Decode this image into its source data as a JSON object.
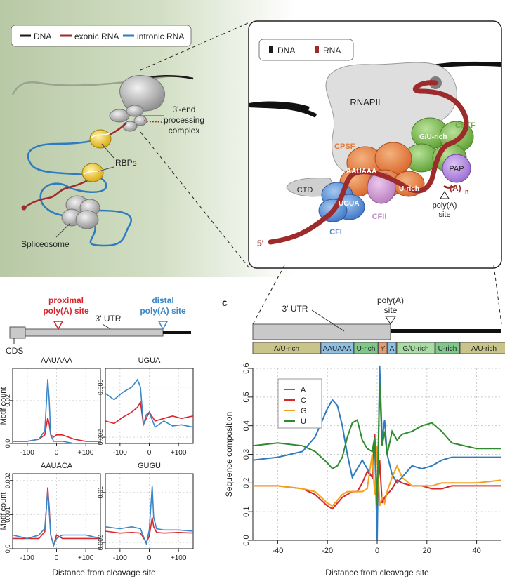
{
  "colors": {
    "dna": "#1a1a1a",
    "exonic": "#9e2b2b",
    "intronic": "#2f7bbf",
    "proximal": "#d8262c",
    "distal": "#3a86c8",
    "cpsf": "#e07a3a",
    "cstf": "#6aab3c",
    "cfi": "#4c86d0",
    "cfii": "#c28ac6",
    "pap": "#a678d6",
    "rnapii": "#d9d9d9"
  },
  "panelA": {
    "legend": {
      "dna": "DNA",
      "exonic": "exonic RNA",
      "intronic": "intronic RNA"
    },
    "labels": {
      "complex1": "3'-end",
      "complex2": "processing",
      "complex3": "complex",
      "rbps": "RBPs",
      "spliceosome": "Spliceosome"
    }
  },
  "panelB": {
    "legend": {
      "dna": "DNA",
      "rna": "RNA"
    },
    "labels": {
      "rnapii": "RNAPII",
      "cpsf": "CPSF",
      "cstf": "CSTF",
      "gu_rich": "G/U-rich",
      "pap": "PAP",
      "aauaaa": "AAUAAA",
      "u_rich": "U-rich",
      "ctd": "CTD",
      "ugua": "UGUA",
      "cfii": "CFII",
      "cfi": "CFI",
      "polya_tail": "(A)",
      "polya_n": "n",
      "polya_site1": "poly(A)",
      "polya_site2": "site",
      "five_prime": "5'"
    }
  },
  "panelC": {
    "letter": "c",
    "utr": "3' UTR",
    "polya1": "poly(A)",
    "polya2": "site",
    "motifs": [
      "A/U-rich",
      "AAUAAA",
      "U-rich",
      "Y",
      "A",
      "G/U-rich",
      "U-rich",
      "A/U-rich"
    ],
    "motif_colors": [
      "#c9c48a",
      "#8fbfe0",
      "#7fc88a",
      "#e89a6a",
      "#8fbfe0",
      "#a9dca3",
      "#7fc88a",
      "#c9c48a"
    ],
    "ylabel": "Sequence composition",
    "xlabel": "Distance from cleavage site",
    "legend": [
      "A",
      "C",
      "G",
      "U"
    ]
  },
  "panelD": {
    "proximal1": "proximal",
    "proximal2": "poly(A) site",
    "distal1": "distal",
    "distal2": "poly(A) site",
    "utr": "3' UTR",
    "cds": "CDS",
    "ylabel": "Motif count",
    "xlabel": "Distance from cleavage site",
    "titles": [
      "AAUAAA",
      "UGUA",
      "AAUACA",
      "GUGU"
    ]
  },
  "chart_data": [
    {
      "type": "line",
      "title": "",
      "xlabel": "Distance from cleavage site",
      "ylabel": "Sequence composition",
      "xlim": [
        -50,
        50
      ],
      "ylim": [
        0,
        0.6
      ],
      "xticks": [
        -40,
        -20,
        0,
        20,
        40
      ],
      "yticks": [
        0.0,
        0.1,
        0.2,
        0.3,
        0.4,
        0.5,
        0.6
      ],
      "grid": true,
      "legend": "top-left",
      "series": [
        {
          "name": "A",
          "color": "#2f7bbf",
          "x": [
            -50,
            -40,
            -30,
            -25,
            -20,
            -18,
            -16,
            -14,
            -12,
            -10,
            -8,
            -6,
            -4,
            -2,
            -1,
            0,
            1,
            2,
            3,
            4,
            6,
            8,
            10,
            14,
            18,
            22,
            26,
            30,
            40,
            50
          ],
          "y": [
            0.28,
            0.29,
            0.31,
            0.36,
            0.46,
            0.49,
            0.47,
            0.4,
            0.3,
            0.22,
            0.25,
            0.28,
            0.25,
            0.22,
            0.35,
            0.0,
            0.61,
            0.35,
            0.42,
            0.3,
            0.23,
            0.2,
            0.22,
            0.26,
            0.25,
            0.26,
            0.28,
            0.29,
            0.29,
            0.29
          ]
        },
        {
          "name": "C",
          "color": "#d8262c",
          "x": [
            -50,
            -40,
            -30,
            -25,
            -20,
            -18,
            -16,
            -14,
            -12,
            -10,
            -8,
            -6,
            -4,
            -2,
            -1,
            0,
            1,
            2,
            3,
            4,
            6,
            8,
            10,
            14,
            18,
            22,
            26,
            30,
            40,
            50
          ],
          "y": [
            0.19,
            0.19,
            0.18,
            0.16,
            0.12,
            0.11,
            0.13,
            0.15,
            0.16,
            0.17,
            0.17,
            0.2,
            0.24,
            0.22,
            0.37,
            0.12,
            0.28,
            0.13,
            0.15,
            0.16,
            0.18,
            0.21,
            0.2,
            0.19,
            0.19,
            0.18,
            0.18,
            0.19,
            0.19,
            0.19
          ]
        },
        {
          "name": "G",
          "color": "#f2a21e",
          "x": [
            -50,
            -40,
            -30,
            -25,
            -20,
            -18,
            -16,
            -14,
            -12,
            -10,
            -8,
            -6,
            -4,
            -2,
            -1,
            0,
            1,
            2,
            3,
            4,
            6,
            8,
            10,
            14,
            18,
            22,
            26,
            30,
            40,
            50
          ],
          "y": [
            0.19,
            0.19,
            0.18,
            0.17,
            0.13,
            0.12,
            0.14,
            0.16,
            0.17,
            0.17,
            0.17,
            0.17,
            0.18,
            0.3,
            0.16,
            0.33,
            0.12,
            0.15,
            0.13,
            0.17,
            0.22,
            0.26,
            0.22,
            0.19,
            0.19,
            0.19,
            0.2,
            0.2,
            0.2,
            0.21
          ]
        },
        {
          "name": "U",
          "color": "#2e8b2e",
          "x": [
            -50,
            -40,
            -30,
            -25,
            -20,
            -18,
            -16,
            -14,
            -12,
            -10,
            -8,
            -6,
            -4,
            -2,
            -1,
            0,
            1,
            2,
            3,
            4,
            6,
            8,
            10,
            14,
            18,
            22,
            26,
            30,
            40,
            50
          ],
          "y": [
            0.33,
            0.34,
            0.33,
            0.31,
            0.27,
            0.25,
            0.26,
            0.29,
            0.36,
            0.41,
            0.42,
            0.35,
            0.32,
            0.31,
            0.36,
            0.12,
            0.55,
            0.33,
            0.38,
            0.3,
            0.38,
            0.35,
            0.37,
            0.38,
            0.4,
            0.41,
            0.38,
            0.34,
            0.32,
            0.32
          ]
        }
      ]
    },
    {
      "type": "line",
      "title": "AAUAAA",
      "ylabel": "Motif count",
      "xlim": [
        -150,
        150
      ],
      "ylim": [
        0,
        0.035
      ],
      "xticks": [
        "-100",
        "0",
        "+100"
      ],
      "yticks": [
        "0.0",
        "0.02"
      ],
      "series": [
        {
          "name": "proximal",
          "color": "#d8262c",
          "x": [
            -150,
            -100,
            -60,
            -40,
            -30,
            -25,
            -20,
            -10,
            0,
            20,
            60,
            100,
            150
          ],
          "y": [
            0.001,
            0.001,
            0.002,
            0.004,
            0.012,
            0.009,
            0.004,
            0.003,
            0.004,
            0.004,
            0.002,
            0.001,
            0.001
          ]
        },
        {
          "name": "distal",
          "color": "#3a86c8",
          "x": [
            -150,
            -100,
            -60,
            -40,
            -30,
            -25,
            -20,
            -10,
            0,
            20,
            60,
            100,
            150
          ],
          "y": [
            0.001,
            0.001,
            0.002,
            0.006,
            0.03,
            0.02,
            0.004,
            0.001,
            0.001,
            0.001,
            0.0,
            0.0,
            0.0
          ]
        }
      ]
    },
    {
      "type": "line",
      "title": "UGUA",
      "xlim": [
        -150,
        150
      ],
      "ylim": [
        0.0015,
        0.0075
      ],
      "xticks": [
        "-100",
        "0",
        "+100"
      ],
      "yticks": [
        "0.002",
        "0.006"
      ],
      "series": [
        {
          "name": "proximal",
          "color": "#d8262c",
          "x": [
            -150,
            -120,
            -90,
            -60,
            -40,
            -30,
            -20,
            -10,
            0,
            20,
            50,
            80,
            110,
            150
          ],
          "y": [
            0.0033,
            0.0031,
            0.0036,
            0.004,
            0.0044,
            0.0048,
            0.003,
            0.0035,
            0.004,
            0.0033,
            0.0035,
            0.0037,
            0.0035,
            0.0037
          ]
        },
        {
          "name": "distal",
          "color": "#3a86c8",
          "x": [
            -150,
            -120,
            -90,
            -60,
            -40,
            -30,
            -20,
            -10,
            0,
            20,
            50,
            80,
            110,
            150
          ],
          "y": [
            0.0055,
            0.005,
            0.0056,
            0.006,
            0.0066,
            0.006,
            0.003,
            0.0038,
            0.004,
            0.0028,
            0.0033,
            0.0029,
            0.003,
            0.0028
          ]
        }
      ]
    },
    {
      "type": "line",
      "title": "AAUACA",
      "ylabel": "Motif count",
      "xlim": [
        -150,
        150
      ],
      "ylim": [
        0,
        0.0022
      ],
      "xticks": [
        "-100",
        "0",
        "+100"
      ],
      "yticks": [
        "0.0",
        "0.001",
        "0.002"
      ],
      "series": [
        {
          "name": "proximal",
          "color": "#d8262c",
          "x": [
            -150,
            -100,
            -60,
            -40,
            -30,
            -25,
            -20,
            -10,
            0,
            20,
            60,
            100,
            150
          ],
          "y": [
            0.0003,
            0.0003,
            0.0003,
            0.0005,
            0.0018,
            0.0012,
            0.0004,
            0.0001,
            0.0004,
            0.0003,
            0.0003,
            0.0003,
            0.0003
          ]
        },
        {
          "name": "distal",
          "color": "#3a86c8",
          "x": [
            -150,
            -100,
            -60,
            -40,
            -30,
            -25,
            -20,
            -10,
            0,
            20,
            60,
            100,
            150
          ],
          "y": [
            0.0004,
            0.0003,
            0.0004,
            0.0006,
            0.0017,
            0.0011,
            0.0004,
            0.0001,
            0.0003,
            0.0004,
            0.0004,
            0.0004,
            0.0003
          ]
        }
      ]
    },
    {
      "type": "line",
      "title": "GUGU",
      "xlim": [
        -150,
        150
      ],
      "ylim": [
        0.001,
        0.013
      ],
      "xticks": [
        "-100",
        "0",
        "+100"
      ],
      "yticks": [
        "0.002",
        "0.01"
      ],
      "series": [
        {
          "name": "proximal",
          "color": "#d8262c",
          "x": [
            -150,
            -100,
            -60,
            -30,
            -10,
            0,
            10,
            15,
            25,
            50,
            100,
            150
          ],
          "y": [
            0.0038,
            0.0035,
            0.0036,
            0.0035,
            0.002,
            0.003,
            0.006,
            0.0045,
            0.0036,
            0.0035,
            0.0036,
            0.0035
          ]
        },
        {
          "name": "distal",
          "color": "#3a86c8",
          "x": [
            -150,
            -100,
            -60,
            -30,
            -10,
            0,
            10,
            15,
            25,
            50,
            100,
            150
          ],
          "y": [
            0.0045,
            0.0042,
            0.0045,
            0.0042,
            0.0018,
            0.004,
            0.011,
            0.006,
            0.0042,
            0.004,
            0.004,
            0.0038
          ]
        }
      ]
    }
  ]
}
